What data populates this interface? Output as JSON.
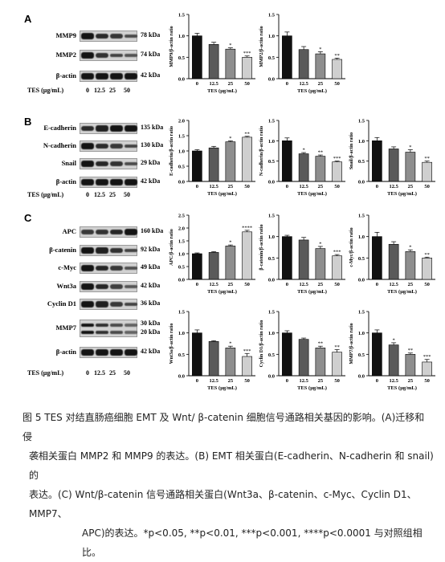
{
  "panels": [
    {
      "letter": "A",
      "blots": [
        {
          "label": "MMP9",
          "kda": "78 kDa",
          "intensity": [
            1.0,
            0.82,
            0.72,
            0.55
          ]
        },
        {
          "label": "MMP2",
          "kda": "74 kDa",
          "intensity": [
            1.0,
            0.75,
            0.62,
            0.48
          ]
        },
        {
          "label": "β-actin",
          "kda": "42 kDa",
          "intensity": [
            1.0,
            1.0,
            1.0,
            1.0
          ]
        }
      ],
      "tes_label": "TES (μg/mL)",
      "tes_values": [
        "0",
        "12.5",
        "25",
        "50"
      ]
    },
    {
      "letter": "B",
      "blots": [
        {
          "label": "E-cadherin",
          "kda": "135 kDa",
          "intensity": [
            0.8,
            0.9,
            1.0,
            1.0
          ]
        },
        {
          "label": "N-cadherin",
          "kda": "130 kDa",
          "intensity": [
            1.0,
            0.8,
            0.7,
            0.6
          ]
        },
        {
          "label": "Snail",
          "kda": "29 kDa",
          "intensity": [
            1.0,
            0.85,
            0.75,
            0.55
          ]
        },
        {
          "label": "β-actin",
          "kda": "42 kDa",
          "intensity": [
            1.0,
            1.0,
            1.0,
            1.0
          ]
        }
      ],
      "tes_label": "TES (μg/mL)",
      "tes_values": [
        "0",
        "12.5",
        "25",
        "50"
      ]
    },
    {
      "letter": "C",
      "blots": [
        {
          "label": "APC",
          "kda": "160 kDa",
          "intensity": [
            0.7,
            0.75,
            0.85,
            1.0
          ]
        },
        {
          "label": "β-catenin",
          "kda": "92 kDa",
          "intensity": [
            1.0,
            0.9,
            0.75,
            0.6
          ]
        },
        {
          "label": "c-Myc",
          "kda": "49 kDa",
          "intensity": [
            1.0,
            0.85,
            0.7,
            0.5
          ]
        },
        {
          "label": "Wnt3a",
          "kda": "42 kDa",
          "intensity": [
            1.0,
            0.85,
            0.65,
            0.45
          ]
        },
        {
          "label": "Cyclin D1",
          "kda": "36 kDa",
          "intensity": [
            1.0,
            0.9,
            0.7,
            0.6
          ]
        },
        {
          "label": "MMP7",
          "kda": "30 kDa",
          "kda2": "20 kDa",
          "intensity": [
            1.0,
            0.75,
            0.55,
            0.35
          ]
        },
        {
          "label": "β-actin",
          "kda": "42 kDa",
          "intensity": [
            1.0,
            1.0,
            1.0,
            1.0
          ]
        }
      ],
      "tes_label": "TES (μg/mL)",
      "tes_values": [
        "0",
        "12.5",
        "25",
        "50"
      ]
    }
  ],
  "chart_data": [
    {
      "type": "bar",
      "panel": "A",
      "ylabel": "MMP9/β-actin ratio",
      "xlabel": "TES (μg/mL)",
      "categories": [
        "0",
        "12.5",
        "25",
        "50"
      ],
      "values": [
        1.0,
        0.8,
        0.69,
        0.5
      ],
      "errors": [
        0.06,
        0.05,
        0.03,
        0.03
      ],
      "significance": [
        "",
        "",
        "*",
        "***"
      ],
      "ylim": [
        0,
        1.5
      ],
      "yticks": [
        "0.0",
        "0.5",
        "1.0",
        "1.5"
      ]
    },
    {
      "type": "bar",
      "panel": "A",
      "ylabel": "MMP2/β-actin ratio",
      "xlabel": "TES (μg/mL)",
      "categories": [
        "0",
        "12.5",
        "25",
        "50"
      ],
      "values": [
        1.0,
        0.68,
        0.58,
        0.45
      ],
      "errors": [
        0.09,
        0.07,
        0.05,
        0.03
      ],
      "significance": [
        "",
        "",
        "*",
        "**"
      ],
      "ylim": [
        0,
        1.5
      ],
      "yticks": [
        "0.0",
        "0.5",
        "1.0",
        "1.5"
      ]
    },
    {
      "type": "bar",
      "panel": "B",
      "ylabel": "E-cadherin/β-actin ratio",
      "xlabel": "TES (μg/mL)",
      "categories": [
        "0",
        "12.5",
        "25",
        "50"
      ],
      "values": [
        1.0,
        1.1,
        1.3,
        1.45
      ],
      "errors": [
        0.04,
        0.05,
        0.03,
        0.03
      ],
      "significance": [
        "",
        "",
        "*",
        "**"
      ],
      "ylim": [
        0,
        2.0
      ],
      "yticks": [
        "0.0",
        "0.5",
        "1.0",
        "1.5",
        "2.0"
      ]
    },
    {
      "type": "bar",
      "panel": "B",
      "ylabel": "N-cadherin/β-actin ratio",
      "xlabel": "TES (μg/mL)",
      "categories": [
        "0",
        "12.5",
        "25",
        "50"
      ],
      "values": [
        1.0,
        0.68,
        0.62,
        0.48
      ],
      "errors": [
        0.07,
        0.03,
        0.03,
        0.02
      ],
      "significance": [
        "",
        "*",
        "**",
        "***"
      ],
      "ylim": [
        0,
        1.5
      ],
      "yticks": [
        "0.0",
        "0.5",
        "1.0",
        "1.5"
      ]
    },
    {
      "type": "bar",
      "panel": "B",
      "ylabel": "Snail/β-actin ratio",
      "xlabel": "TES (μg/mL)",
      "categories": [
        "0",
        "12.5",
        "25",
        "50"
      ],
      "values": [
        1.0,
        0.8,
        0.72,
        0.47
      ],
      "errors": [
        0.08,
        0.05,
        0.06,
        0.03
      ],
      "significance": [
        "",
        "",
        "*",
        "**"
      ],
      "ylim": [
        0,
        1.5
      ],
      "yticks": [
        "0.0",
        "0.5",
        "1.0",
        "1.5"
      ]
    },
    {
      "type": "bar",
      "panel": "C",
      "ylabel": "APC/β-actin ratio",
      "xlabel": "TES (μg/mL)",
      "categories": [
        "0",
        "12.5",
        "25",
        "50"
      ],
      "values": [
        1.0,
        1.05,
        1.3,
        1.85
      ],
      "errors": [
        0.03,
        0.03,
        0.04,
        0.06
      ],
      "significance": [
        "",
        "",
        "*",
        "****"
      ],
      "ylim": [
        0,
        2.5
      ],
      "yticks": [
        "0.0",
        "0.5",
        "1.0",
        "1.5",
        "2.0",
        "2.5"
      ]
    },
    {
      "type": "bar",
      "panel": "C",
      "ylabel": "β-catenin/β-actin ratio",
      "xlabel": "TES (μg/mL)",
      "categories": [
        "0",
        "12.5",
        "25",
        "50"
      ],
      "values": [
        1.0,
        0.92,
        0.72,
        0.55
      ],
      "errors": [
        0.03,
        0.06,
        0.05,
        0.03
      ],
      "significance": [
        "",
        "",
        "*",
        "***"
      ],
      "ylim": [
        0,
        1.5
      ],
      "yticks": [
        "0.0",
        "0.5",
        "1.0",
        "1.5"
      ]
    },
    {
      "type": "bar",
      "panel": "C",
      "ylabel": "c-Myc/β-actin ratio",
      "xlabel": "TES (μg/mL)",
      "categories": [
        "0",
        "12.5",
        "25",
        "50"
      ],
      "values": [
        1.0,
        0.82,
        0.65,
        0.5
      ],
      "errors": [
        0.1,
        0.06,
        0.04,
        0.02
      ],
      "significance": [
        "",
        "",
        "*",
        "**"
      ],
      "ylim": [
        0,
        1.5
      ],
      "yticks": [
        "0.0",
        "0.5",
        "1.0",
        "1.5"
      ]
    },
    {
      "type": "bar",
      "panel": "C",
      "ylabel": "Wnt3a/β-actin ratio",
      "xlabel": "TES (μg/mL)",
      "categories": [
        "0",
        "12.5",
        "25",
        "50"
      ],
      "values": [
        1.0,
        0.8,
        0.65,
        0.45
      ],
      "errors": [
        0.07,
        0.02,
        0.04,
        0.07
      ],
      "significance": [
        "",
        "",
        "*",
        "***"
      ],
      "ylim": [
        0,
        1.5
      ],
      "yticks": [
        "0.0",
        "0.5",
        "1.0",
        "1.5"
      ]
    },
    {
      "type": "bar",
      "panel": "C",
      "ylabel": "Cyclin D1/β-actin ratio",
      "xlabel": "TES (μg/mL)",
      "categories": [
        "0",
        "12.5",
        "25",
        "50"
      ],
      "values": [
        1.0,
        0.85,
        0.65,
        0.55
      ],
      "errors": [
        0.05,
        0.03,
        0.04,
        0.06
      ],
      "significance": [
        "",
        "",
        "**",
        "**"
      ],
      "ylim": [
        0,
        1.5
      ],
      "yticks": [
        "0.0",
        "0.5",
        "1.0",
        "1.5"
      ]
    },
    {
      "type": "bar",
      "panel": "C",
      "ylabel": "MMP7/β-actin ratio",
      "xlabel": "TES (μg/mL)",
      "categories": [
        "0",
        "12.5",
        "25",
        "50"
      ],
      "values": [
        1.0,
        0.72,
        0.5,
        0.32
      ],
      "errors": [
        0.07,
        0.05,
        0.03,
        0.06
      ],
      "significance": [
        "",
        "*",
        "**",
        "***"
      ],
      "ylim": [
        0,
        1.5
      ],
      "yticks": [
        "0.0",
        "0.5",
        "1.0",
        "1.5"
      ]
    }
  ],
  "bar_colors": [
    "#111111",
    "#5a5a5a",
    "#8e8e8e",
    "#cfcfcf"
  ],
  "caption": {
    "line1": "图 5 TES 对结直肠癌细胞 EMT 及 Wnt/ β-catenin 细胞信号通路相关基因的影响。(A)迁移和侵",
    "line2": "袭相关蛋白 MMP2 和 MMP9 的表达。(B) EMT 相关蛋白(E-cadherin、N-cadherin 和 snail)的",
    "line3": "表达。(C) Wnt/β-catenin 信号通路相关蛋白(Wnt3a、β-catenin、c-Myc、Cyclin D1、MMP7、",
    "line4": "APC)的表达。*p<0.05, **p<0.01, ***p<0.001, ****p<0.0001 与对照组相比。"
  }
}
